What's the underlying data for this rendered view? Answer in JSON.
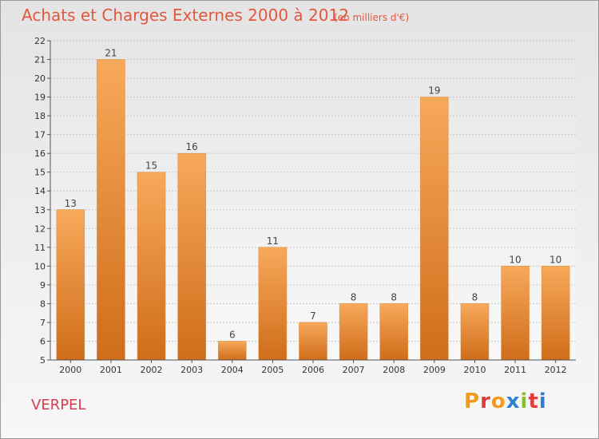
{
  "header": {
    "title": "Achats et Charges Externes 2000 à 2012",
    "unit": "(en milliers d'€)"
  },
  "footer": {
    "commune": "VERPEL",
    "logo_text": "Proxiti",
    "logo_colors": [
      "#f29a1d",
      "#e13b3b",
      "#f29a1d",
      "#2e7fd6",
      "#8bbf2a",
      "#e13b3b",
      "#2e7fd6"
    ]
  },
  "colors": {
    "title": "#e0583f",
    "bar_top": "#f7a95a",
    "bar_bottom": "#cf6d1a",
    "axis": "#555555",
    "grid": "#c8c8c8",
    "commune": "#d83d4e"
  },
  "chart_data": {
    "type": "bar",
    "categories": [
      "2000",
      "2001",
      "2002",
      "2003",
      "2004",
      "2005",
      "2006",
      "2007",
      "2008",
      "2009",
      "2010",
      "2011",
      "2012"
    ],
    "values": [
      13,
      21,
      15,
      16,
      6,
      11,
      7,
      8,
      8,
      19,
      8,
      10,
      10
    ],
    "title": "Achats et Charges Externes 2000 à 2012",
    "ylabel": "",
    "xlabel": "",
    "ylim": [
      5,
      22
    ],
    "yticks": [
      5,
      6,
      7,
      8,
      9,
      10,
      11,
      12,
      13,
      14,
      15,
      16,
      17,
      18,
      19,
      20,
      21,
      22
    ],
    "grid": true,
    "data_labels": true
  }
}
